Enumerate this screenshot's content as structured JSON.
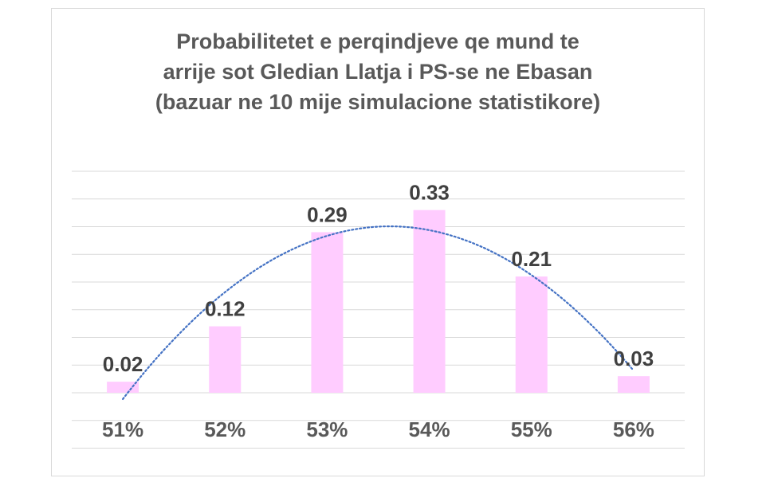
{
  "chart_data": {
    "type": "bar",
    "title_lines": [
      "Probabilitetet e perqindjeve qe mund te",
      "arrije sot Gledian Llatja i PS-se ne Ebasan",
      "(bazuar ne 10 mije simulacione statistikore)"
    ],
    "categories": [
      "51%",
      "52%",
      "53%",
      "54%",
      "55%",
      "56%"
    ],
    "values": [
      0.02,
      0.12,
      0.29,
      0.33,
      0.21,
      0.03
    ],
    "data_labels": [
      "0.02",
      "0.12",
      "0.29",
      "0.33",
      "0.21",
      "0.03"
    ],
    "ylim": [
      -0.1,
      0.4
    ],
    "grid": true,
    "trendline": {
      "type": "polynomial",
      "style": "dotted"
    },
    "colors": {
      "bar": "#ffccff",
      "trendline": "#4472c4",
      "grid": "#d9d9d9"
    }
  }
}
